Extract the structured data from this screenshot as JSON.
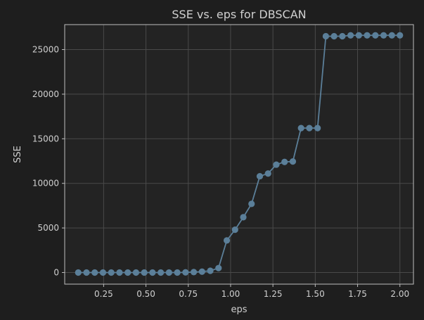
{
  "chart_data": {
    "type": "line",
    "title": "SSE vs. eps for DBSCAN",
    "xlabel": "eps",
    "ylabel": "SSE",
    "xlim": [
      0.02,
      2.08
    ],
    "ylim": [
      -1300,
      27800
    ],
    "grid": true,
    "x_ticks": [
      0.25,
      0.5,
      0.75,
      1.0,
      1.25,
      1.5,
      1.75,
      2.0
    ],
    "x_tick_labels": [
      "0.25",
      "0.50",
      "0.75",
      "1.00",
      "1.25",
      "1.50",
      "1.75",
      "2.00"
    ],
    "y_ticks": [
      0,
      5000,
      10000,
      15000,
      20000,
      25000
    ],
    "y_tick_labels": [
      "0",
      "5000",
      "10000",
      "15000",
      "20000",
      "25000"
    ],
    "colors": {
      "background": "#1e1e1e",
      "plot_area": "#232323",
      "axes_edge": "#bdbdbd",
      "grid": "#4a4a4a",
      "text": "#d0d0d0",
      "series": "#5b7f99"
    },
    "series": [
      {
        "x": [
          0.1,
          0.1487,
          0.1975,
          0.2462,
          0.295,
          0.3437,
          0.3925,
          0.4412,
          0.49,
          0.5387,
          0.5875,
          0.6362,
          0.685,
          0.7337,
          0.7825,
          0.8312,
          0.88,
          0.9287,
          0.9775,
          1.0262,
          1.075,
          1.1237,
          1.1725,
          1.2212,
          1.27,
          1.3187,
          1.3675,
          1.4162,
          1.465,
          1.5137,
          1.5625,
          1.6112,
          1.66,
          1.7087,
          1.7575,
          1.8062,
          1.855,
          1.9037,
          1.9525,
          2.0
        ],
        "values": [
          0,
          0,
          0,
          0,
          0,
          0,
          0,
          0,
          0,
          0,
          0,
          0,
          0,
          20,
          50,
          100,
          200,
          500,
          3600,
          4800,
          6200,
          7700,
          10800,
          11100,
          12100,
          12400,
          12450,
          16200,
          16200,
          16200,
          26500,
          26500,
          26500,
          26600,
          26600,
          26600,
          26600,
          26600,
          26600,
          26600
        ]
      }
    ]
  }
}
